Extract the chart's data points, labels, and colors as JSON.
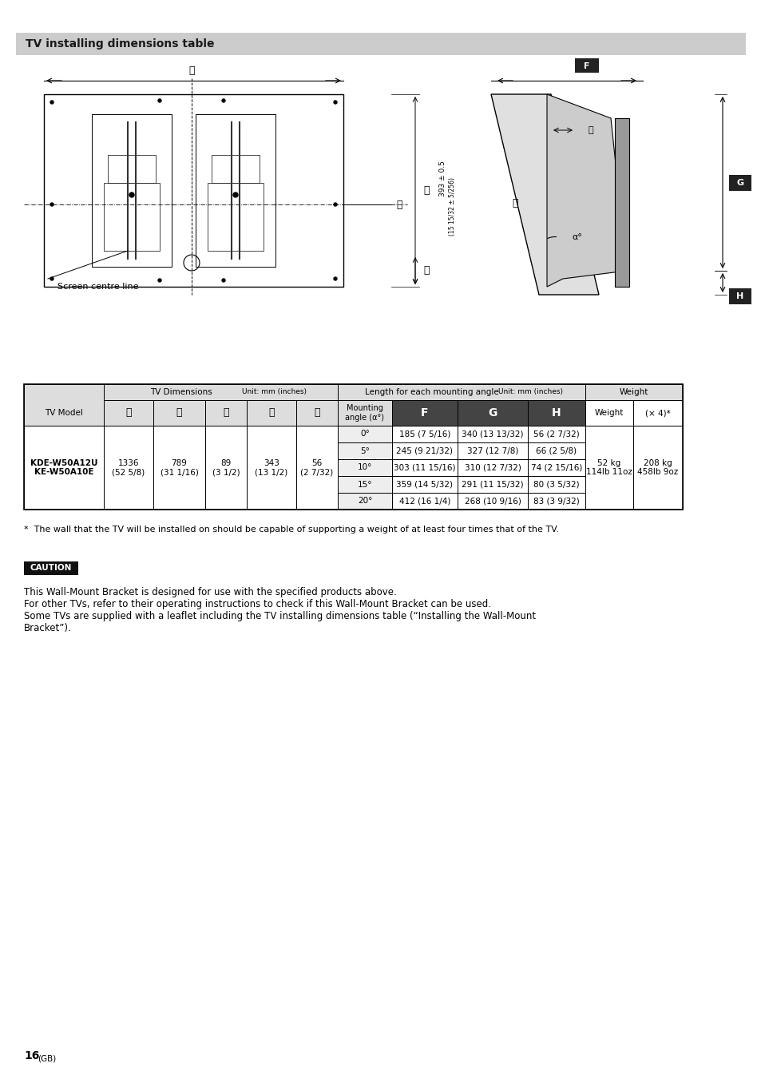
{
  "page_title": "TV installing dimensions table",
  "page_number": "16 (GB)",
  "bg": "#ffffff",
  "header_bg": "#cccccc",
  "footnote": "*  The wall that the TV will be installed on should be capable of supporting a weight of at least four times that of the TV.",
  "caution_text": [
    "This Wall-Mount Bracket is designed for use with the specified products above.",
    "For other TVs, refer to their operating instructions to check if this Wall-Mount Bracket can be used.",
    "Some TVs are supplied with a leaflet including the TV installing dimensions table (“Installing the Wall-Mount",
    "Bracket”)."
  ],
  "table": {
    "rows": [
      {
        "model": "KDE-W50A12U\nKE-W50A10E",
        "A": "1336\n(52 5/8)",
        "B": "789\n(31 1/16)",
        "C": "89\n(3 1/2)",
        "D": "343\n(13 1/2)",
        "E": "56\n(2 7/32)",
        "angles": [
          {
            "angle": "0°",
            "F": "185 (7 5/16)",
            "G": "340 (13 13/32)",
            "H": "56 (2 7/32)"
          },
          {
            "angle": "5°",
            "F": "245 (9 21/32)",
            "G": "327 (12 7/8)",
            "H": "66 (2 5/8)"
          },
          {
            "angle": "10°",
            "F": "303 (11 15/16)",
            "G": "310 (12 7/32)",
            "H": "74 (2 15/16)"
          },
          {
            "angle": "15°",
            "F": "359 (14 5/32)",
            "G": "291 (11 15/32)",
            "H": "80 (3 5/32)"
          },
          {
            "angle": "20°",
            "F": "412 (16 1/4)",
            "G": "268 (10 9/16)",
            "H": "83 (3 9/32)"
          }
        ],
        "weight_kg": "52 kg\n114lb 11oz",
        "weight_x4": "208 kg\n458lb 9oz"
      }
    ]
  }
}
